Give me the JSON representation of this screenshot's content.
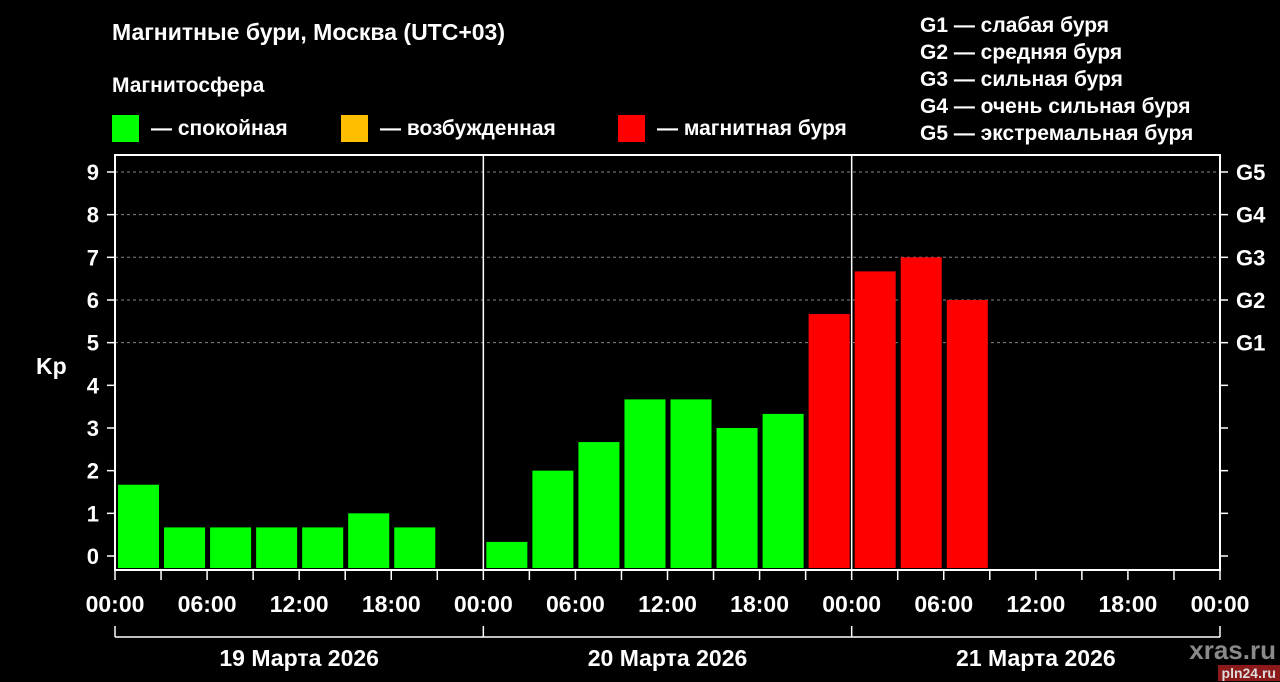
{
  "chart_data": {
    "type": "bar",
    "title": "Магнитные бури, Москва (UTC+03)",
    "legend_title": "Магнитосфера",
    "legend": [
      {
        "label": "— спокойная",
        "color": "#00ff00"
      },
      {
        "label": "— возбужденная",
        "color": "#ffbf00"
      },
      {
        "label": "— магнитная буря",
        "color": "#ff0000"
      }
    ],
    "g_scale": [
      "G1 — слабая буря",
      "G2 — средняя буря",
      "G3 — сильная буря",
      "G4 — очень сильная буря",
      "G5 — экстремальная буря"
    ],
    "ylabel": "Kp",
    "ylim": [
      0,
      9
    ],
    "yticks": [
      "0",
      "1",
      "2",
      "3",
      "4",
      "5",
      "6",
      "7",
      "8",
      "9"
    ],
    "right_ticks": [
      {
        "kp": 5,
        "label": "G1"
      },
      {
        "kp": 6,
        "label": "G2"
      },
      {
        "kp": 7,
        "label": "G3"
      },
      {
        "kp": 8,
        "label": "G4"
      },
      {
        "kp": 9,
        "label": "G5"
      }
    ],
    "xtick_labels": [
      "00:00",
      "06:00",
      "12:00",
      "18:00",
      "00:00",
      "06:00",
      "12:00",
      "18:00",
      "00:00",
      "06:00",
      "12:00",
      "18:00",
      "00:00"
    ],
    "days": [
      "19 Марта 2026",
      "20 Марта 2026",
      "21 Марта 2026"
    ],
    "interval_hours": 3,
    "grid": "dashed horizontal at 5-9",
    "values": [
      1.67,
      0.67,
      0.67,
      0.67,
      0.67,
      1.0,
      0.67,
      null,
      0.33,
      2.0,
      2.67,
      3.67,
      3.67,
      3.0,
      3.33,
      5.67,
      6.67,
      7.0,
      6.0
    ],
    "colors": {
      "quiet": "#00ff00",
      "storm": "#ff0000",
      "storm_threshold": 5
    }
  },
  "watermarks": [
    "xras.ru",
    "pln24.ru"
  ]
}
